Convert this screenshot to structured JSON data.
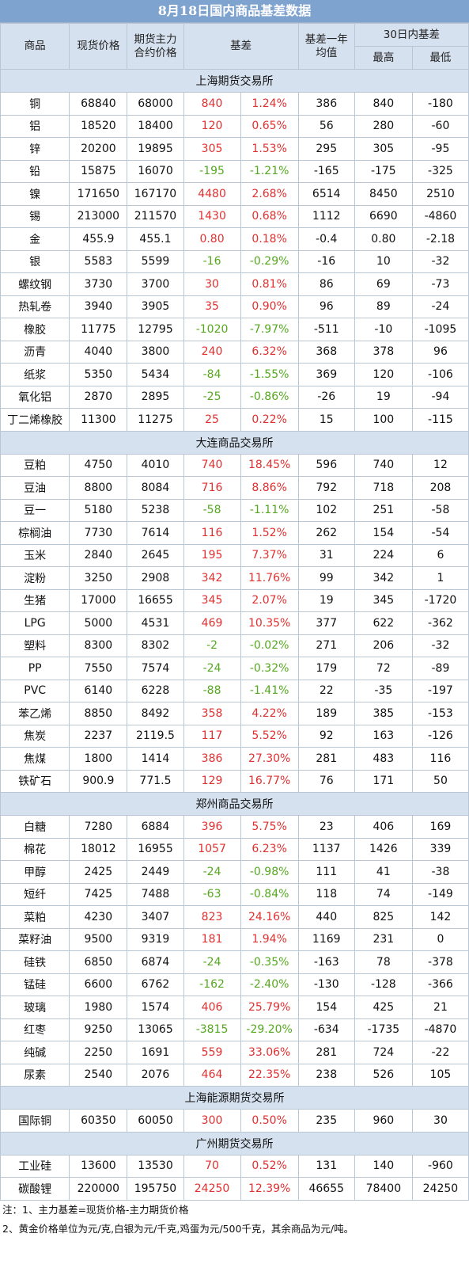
{
  "colors": {
    "header_bg": "#d6e1ef",
    "title_bg": "#7fa3cf",
    "positive": "#e03030",
    "negative": "#55a81f"
  },
  "title": "8月18日国内商品基差数据",
  "headers": {
    "commodity": "商品",
    "spot_price": "现货价格",
    "futures_price_line1": "期货主力",
    "futures_price_line2": "合约价格",
    "basis": "基差",
    "basis_avg_line1": "基差一年",
    "basis_avg_line2": "均值",
    "range30": "30日内基差",
    "high": "最高",
    "low": "最低"
  },
  "sections": [
    {
      "name": "上海期货交易所",
      "rows": [
        [
          "铜",
          "68840",
          "68000",
          "840",
          "1.24%",
          "386",
          "840",
          "-180"
        ],
        [
          "铝",
          "18520",
          "18400",
          "120",
          "0.65%",
          "56",
          "280",
          "-60"
        ],
        [
          "锌",
          "20200",
          "19895",
          "305",
          "1.53%",
          "295",
          "305",
          "-95"
        ],
        [
          "铅",
          "15875",
          "16070",
          "-195",
          "-1.21%",
          "-165",
          "-175",
          "-325"
        ],
        [
          "镍",
          "171650",
          "167170",
          "4480",
          "2.68%",
          "6514",
          "8450",
          "2510"
        ],
        [
          "锡",
          "213000",
          "211570",
          "1430",
          "0.68%",
          "1112",
          "6690",
          "-4860"
        ],
        [
          "金",
          "455.9",
          "455.1",
          "0.80",
          "0.18%",
          "-0.4",
          "0.80",
          "-2.18"
        ],
        [
          "银",
          "5583",
          "5599",
          "-16",
          "-0.29%",
          "-16",
          "10",
          "-32"
        ],
        [
          "螺纹钢",
          "3730",
          "3700",
          "30",
          "0.81%",
          "86",
          "69",
          "-73"
        ],
        [
          "热轧卷",
          "3940",
          "3905",
          "35",
          "0.90%",
          "96",
          "89",
          "-24"
        ],
        [
          "橡胶",
          "11775",
          "12795",
          "-1020",
          "-7.97%",
          "-511",
          "-10",
          "-1095"
        ],
        [
          "沥青",
          "4040",
          "3800",
          "240",
          "6.32%",
          "368",
          "378",
          "96"
        ],
        [
          "纸浆",
          "5350",
          "5434",
          "-84",
          "-1.55%",
          "369",
          "120",
          "-106"
        ],
        [
          "氧化铝",
          "2870",
          "2895",
          "-25",
          "-0.86%",
          "-26",
          "19",
          "-94"
        ],
        [
          "丁二烯橡胶",
          "11300",
          "11275",
          "25",
          "0.22%",
          "15",
          "100",
          "-115"
        ]
      ]
    },
    {
      "name": "大连商品交易所",
      "rows": [
        [
          "豆粕",
          "4750",
          "4010",
          "740",
          "18.45%",
          "596",
          "740",
          "12"
        ],
        [
          "豆油",
          "8800",
          "8084",
          "716",
          "8.86%",
          "792",
          "718",
          "208"
        ],
        [
          "豆一",
          "5180",
          "5238",
          "-58",
          "-1.11%",
          "102",
          "251",
          "-58"
        ],
        [
          "棕榈油",
          "7730",
          "7614",
          "116",
          "1.52%",
          "262",
          "154",
          "-54"
        ],
        [
          "玉米",
          "2840",
          "2645",
          "195",
          "7.37%",
          "31",
          "224",
          "6"
        ],
        [
          "淀粉",
          "3250",
          "2908",
          "342",
          "11.76%",
          "99",
          "342",
          "1"
        ],
        [
          "生猪",
          "17000",
          "16655",
          "345",
          "2.07%",
          "19",
          "345",
          "-1720"
        ],
        [
          "LPG",
          "5000",
          "4531",
          "469",
          "10.35%",
          "377",
          "622",
          "-362"
        ],
        [
          "塑料",
          "8300",
          "8302",
          "-2",
          "-0.02%",
          "271",
          "206",
          "-32"
        ],
        [
          "PP",
          "7550",
          "7574",
          "-24",
          "-0.32%",
          "179",
          "72",
          "-89"
        ],
        [
          "PVC",
          "6140",
          "6228",
          "-88",
          "-1.41%",
          "22",
          "-35",
          "-197"
        ],
        [
          "苯乙烯",
          "8850",
          "8492",
          "358",
          "4.22%",
          "189",
          "385",
          "-153"
        ],
        [
          "焦炭",
          "2237",
          "2119.5",
          "117",
          "5.52%",
          "92",
          "163",
          "-126"
        ],
        [
          "焦煤",
          "1800",
          "1414",
          "386",
          "27.30%",
          "281",
          "483",
          "116"
        ],
        [
          "铁矿石",
          "900.9",
          "771.5",
          "129",
          "16.77%",
          "76",
          "171",
          "50"
        ]
      ]
    },
    {
      "name": "郑州商品交易所",
      "rows": [
        [
          "白糖",
          "7280",
          "6884",
          "396",
          "5.75%",
          "23",
          "406",
          "169"
        ],
        [
          "棉花",
          "18012",
          "16955",
          "1057",
          "6.23%",
          "1137",
          "1426",
          "339"
        ],
        [
          "甲醇",
          "2425",
          "2449",
          "-24",
          "-0.98%",
          "111",
          "41",
          "-38"
        ],
        [
          "短纤",
          "7425",
          "7488",
          "-63",
          "-0.84%",
          "118",
          "74",
          "-149"
        ],
        [
          "菜粕",
          "4230",
          "3407",
          "823",
          "24.16%",
          "440",
          "825",
          "142"
        ],
        [
          "菜籽油",
          "9500",
          "9319",
          "181",
          "1.94%",
          "1169",
          "231",
          "0"
        ],
        [
          "硅铁",
          "6850",
          "6874",
          "-24",
          "-0.35%",
          "-163",
          "78",
          "-378"
        ],
        [
          "锰硅",
          "6600",
          "6762",
          "-162",
          "-2.40%",
          "-130",
          "-128",
          "-366"
        ],
        [
          "玻璃",
          "1980",
          "1574",
          "406",
          "25.79%",
          "154",
          "425",
          "21"
        ],
        [
          "红枣",
          "9250",
          "13065",
          "-3815",
          "-29.20%",
          "-634",
          "-1735",
          "-4870"
        ],
        [
          "纯碱",
          "2250",
          "1691",
          "559",
          "33.06%",
          "281",
          "724",
          "-22"
        ],
        [
          "尿素",
          "2540",
          "2076",
          "464",
          "22.35%",
          "238",
          "526",
          "105"
        ]
      ]
    },
    {
      "name": "上海能源期货交易所",
      "rows": [
        [
          "国际铜",
          "60350",
          "60050",
          "300",
          "0.50%",
          "235",
          "960",
          "30"
        ]
      ]
    },
    {
      "name": "广州期货交易所",
      "rows": [
        [
          "工业硅",
          "13600",
          "13530",
          "70",
          "0.52%",
          "131",
          "140",
          "-960"
        ],
        [
          "碳酸锂",
          "220000",
          "195750",
          "24250",
          "12.39%",
          "46655",
          "78400",
          "24250"
        ]
      ]
    }
  ],
  "notes": [
    "注：1、主力基差=现货价格-主力期货价格",
    "2、黄金价格单位为元/克,白银为元/千克,鸡蛋为元/500千克，其余商品为元/吨。"
  ]
}
